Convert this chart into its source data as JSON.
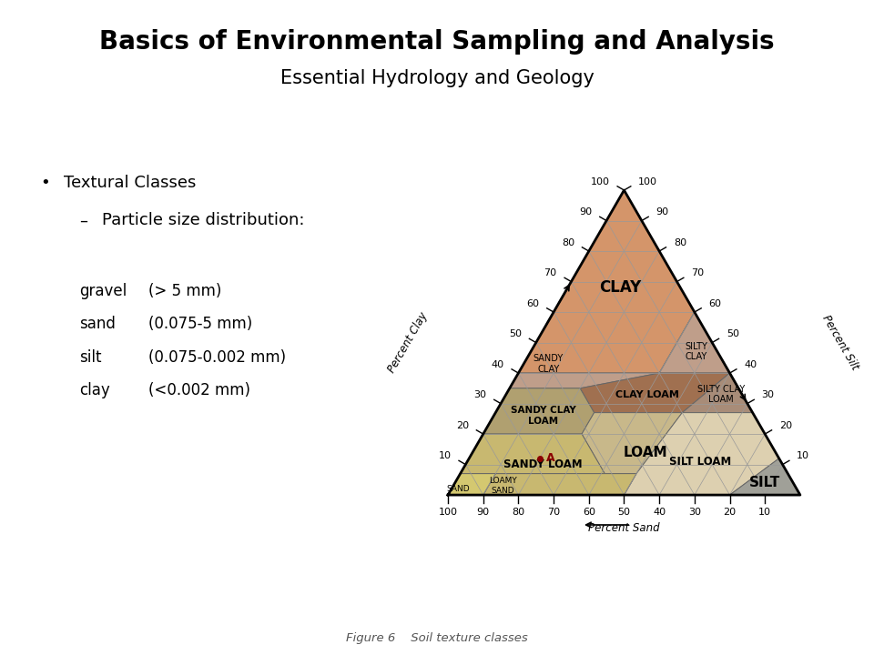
{
  "title_line1": "Basics of Environmental Sampling and Analysis",
  "title_line2": "Essential Hydrology and Geology",
  "title_fontsize": 20,
  "subtitle_fontsize": 15,
  "bg_color": "#ffffff",
  "bullet_text": "Textural Classes",
  "sub_bullet": "Particle size distribution:",
  "particles": [
    [
      "gravel",
      "(> 5 mm)"
    ],
    [
      "sand",
      "(0.075-5 mm)"
    ],
    [
      "silt",
      "(0.075-0.002 mm)"
    ],
    [
      "clay",
      "(<0.002 mm)"
    ]
  ],
  "figure_caption": "Figure 6    Soil texture classes",
  "colors": {
    "clay": "#d4956a",
    "silty_clay": "#bf9e8a",
    "sandy_clay": "#bf9e8a",
    "clay_loam": "#a07050",
    "silty_clay_loam": "#a88c78",
    "sandy_clay_loam": "#b0a070",
    "loam": "#c8b88a",
    "silt_loam": "#ddd0b0",
    "sandy_loam": "#c8b870",
    "loamy_sand": "#c8b860",
    "sand_region": "#d4c870",
    "silt": "#a0a098"
  }
}
